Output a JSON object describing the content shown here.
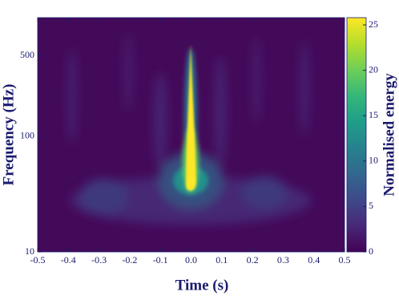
{
  "chart_data": {
    "type": "heatmap",
    "xlabel": "Time (s)",
    "ylabel": "Frequency (Hz)",
    "colorbar_label": "Normalised energy",
    "xlim": [
      -0.5,
      0.5
    ],
    "xticks": [
      -0.5,
      -0.4,
      -0.3,
      -0.2,
      -0.1,
      {
        "value": 0,
        "label": "0.0"
      },
      0.1,
      0.2,
      0.3,
      0.4,
      0.5
    ],
    "ylim": [
      10,
      1060
    ],
    "yscale": "log",
    "yticks": [
      10,
      100,
      500
    ],
    "colormap": "viridis",
    "clim": [
      0,
      25.8
    ],
    "cticks": [
      0,
      5,
      10,
      15,
      20,
      25
    ]
  }
}
